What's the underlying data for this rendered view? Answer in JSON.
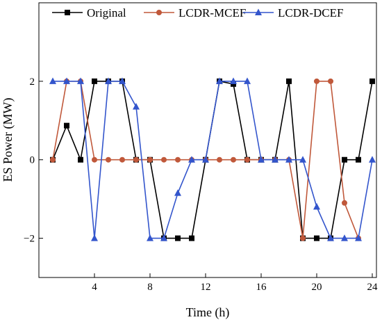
{
  "chart_data": {
    "type": "line",
    "xlabel": "Time (h)",
    "ylabel": "ES Power (MW)",
    "xlim": [
      0,
      24.3
    ],
    "ylim": [
      -3,
      4
    ],
    "x_ticks": [
      4,
      8,
      12,
      16,
      20,
      24
    ],
    "y_ticks": [
      -2,
      0,
      2
    ],
    "y_tick_labels": [
      "−2",
      "0",
      "2"
    ],
    "legend_position": "top",
    "grid": false,
    "x": [
      1,
      2,
      3,
      4,
      5,
      6,
      7,
      8,
      9,
      10,
      11,
      12,
      13,
      14,
      15,
      16,
      17,
      18,
      19,
      20,
      21,
      22,
      23,
      24
    ],
    "series": [
      {
        "name": "Original",
        "color": "#000000",
        "marker": "square",
        "values": [
          0,
          0.87,
          0,
          2,
          2,
          2,
          0,
          0,
          -2,
          -2,
          -2,
          0,
          2,
          1.93,
          0,
          0,
          0,
          2,
          -2,
          -2,
          -2,
          0,
          0,
          2
        ]
      },
      {
        "name": "LCDR-MCEF",
        "color": "#c0583a",
        "marker": "circle",
        "values": [
          0,
          2,
          2,
          0,
          0,
          0,
          0,
          0,
          0,
          0,
          0,
          0,
          0,
          0,
          0,
          0,
          0,
          0,
          -2,
          2,
          2,
          -1.1,
          -2,
          null
        ]
      },
      {
        "name": "LCDR-DCEF",
        "color": "#3355cc",
        "marker": "triangle",
        "values": [
          2,
          2,
          2,
          -2,
          2,
          2,
          1.35,
          -2,
          -2,
          -0.85,
          0,
          0,
          2,
          2,
          2,
          0,
          0,
          0,
          0,
          -1.2,
          -2,
          -2,
          -2,
          0
        ]
      }
    ]
  }
}
